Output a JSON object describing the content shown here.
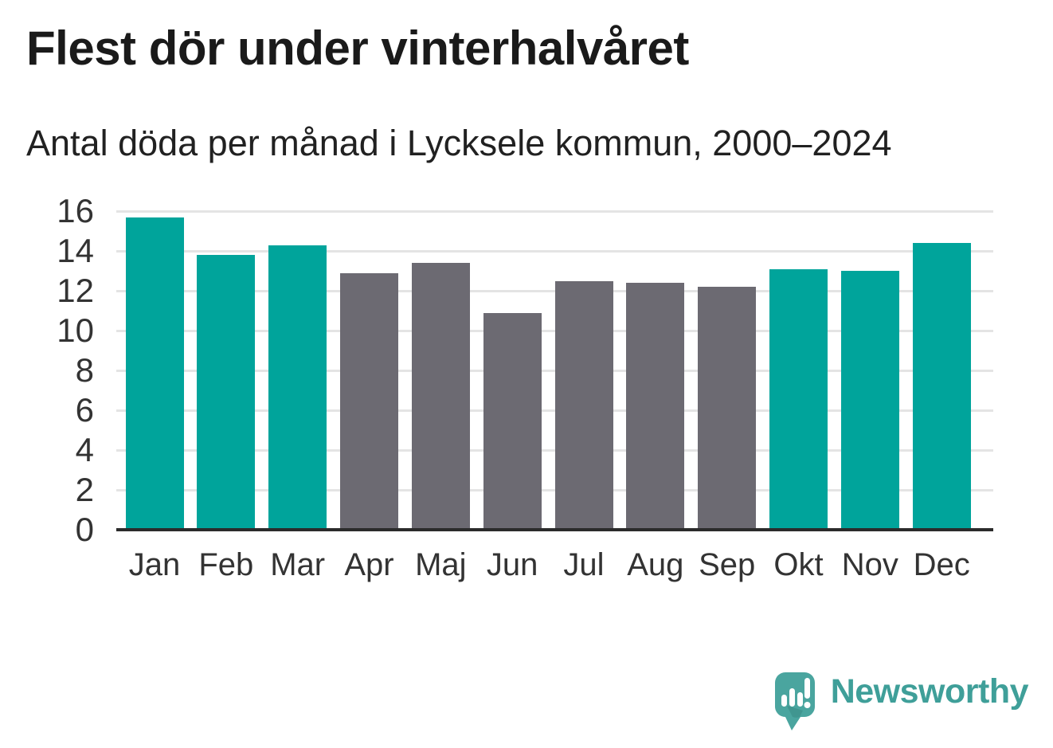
{
  "header": {
    "title": "Flest dör under vinterhalvåret",
    "subtitle": "Antal döda per månad i Lycksele kommun, 2000–2024"
  },
  "chart_data": {
    "type": "bar",
    "title": "Flest dör under vinterhalvåret",
    "subtitle": "Antal döda per månad i Lycksele kommun, 2000–2024",
    "categories": [
      "Jan",
      "Feb",
      "Mar",
      "Apr",
      "Maj",
      "Jun",
      "Jul",
      "Aug",
      "Sep",
      "Okt",
      "Nov",
      "Dec"
    ],
    "values": [
      15.7,
      13.8,
      14.3,
      12.9,
      13.4,
      10.9,
      12.5,
      12.4,
      12.2,
      13.1,
      13.0,
      14.4
    ],
    "colors": [
      "#00a49b",
      "#00a49b",
      "#00a49b",
      "#6c6a72",
      "#6c6a72",
      "#6c6a72",
      "#6c6a72",
      "#6c6a72",
      "#6c6a72",
      "#00a49b",
      "#00a49b",
      "#00a49b"
    ],
    "highlight_color": "#00a49b",
    "muted_color": "#6c6a72",
    "xlabel": "",
    "ylabel": "",
    "ylim": [
      0,
      16
    ],
    "yticks": [
      0,
      2,
      4,
      6,
      8,
      10,
      12,
      14,
      16
    ],
    "grid": "horizontal",
    "gridline_color": "#e4e4e4",
    "axis_line_color": "#2b2b2b",
    "tick_label_color": "#333333",
    "legend": "none"
  },
  "branding": {
    "logo_text": "Newsworthy",
    "logo_color": "#3f9f99",
    "logo_icon": "newsworthy-speech-bubble-bar-chart-icon",
    "logo_icon_fill": "#4aa59f"
  }
}
